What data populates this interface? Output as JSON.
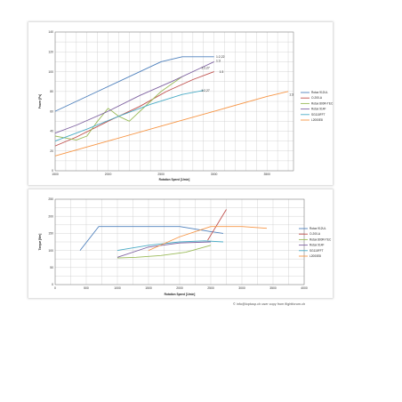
{
  "colors": {
    "rotax912": "#4f81bd",
    "o200": "#c0504d",
    "rotax800": "#9bbb59",
    "rotax914": "#8064a2",
    "sg": "#4bacc6",
    "l2000": "#f79646"
  },
  "chart_data": [
    {
      "type": "line",
      "xlabel": "Rotation Speed [1/min]",
      "ylabel": "Power [Ps]",
      "xlim": [
        1500,
        3750
      ],
      "ylim": [
        0,
        140
      ],
      "xticks": [
        1500,
        2000,
        2500,
        3000,
        3500
      ],
      "yticks": [
        0,
        20,
        40,
        60,
        80,
        100,
        120,
        140
      ],
      "grid": true,
      "legend_position": "right",
      "series": [
        {
          "name": "Rotax 912UL",
          "color": "rotax912",
          "x": [
            1500,
            1900,
            2300,
            2500,
            2700,
            3000
          ],
          "y": [
            60,
            80,
            100,
            110,
            115,
            115
          ]
        },
        {
          "name": "O-200-A",
          "color": "o200",
          "x": [
            1500,
            1700,
            2000,
            2300,
            2550,
            2800,
            3000
          ],
          "y": [
            25,
            34,
            50,
            65,
            80,
            92,
            100
          ]
        },
        {
          "name": "Rotax 800R-TEC",
          "color": "rotax800",
          "x": [
            1500,
            1600,
            1700,
            1800,
            1900,
            2000,
            2100,
            2200,
            2300,
            2500,
            2700
          ],
          "y": [
            35,
            33,
            31,
            35,
            50,
            63,
            55,
            50,
            60,
            80,
            95
          ]
        },
        {
          "name": "Rotax 914F",
          "color": "rotax914",
          "x": [
            1500,
            1700,
            2000,
            2300,
            2600,
            2900,
            3000
          ],
          "y": [
            38,
            46,
            60,
            76,
            90,
            105,
            110
          ]
        },
        {
          "name": "SG110FFT",
          "color": "sg",
          "x": [
            1500,
            1800,
            2100,
            2400,
            2700,
            2900
          ],
          "y": [
            30,
            42,
            55,
            67,
            77,
            81
          ]
        },
        {
          "name": "L2000E8",
          "color": "l2000",
          "x": [
            1500,
            2000,
            2500,
            3000,
            3500,
            3700
          ],
          "y": [
            15,
            30,
            45,
            60,
            75,
            80
          ]
        }
      ],
      "annotations": [
        {
          "text": "1:2,22",
          "x": 3020,
          "y": 115
        },
        {
          "text": "1:3",
          "x": 3020,
          "y": 111
        },
        {
          "text": "1:2,27",
          "x": 2880,
          "y": 104
        },
        {
          "text": "1:3",
          "x": 3050,
          "y": 100
        },
        {
          "text": "1:2,27",
          "x": 2880,
          "y": 81
        },
        {
          "text": "1:3",
          "x": 3710,
          "y": 77
        }
      ]
    },
    {
      "type": "line",
      "xlabel": "Rotation Speed [1/min]",
      "ylabel": "Torque [Nm]",
      "xlim": [
        0,
        4000
      ],
      "ylim": [
        0,
        250
      ],
      "xticks": [
        0,
        500,
        1000,
        1500,
        2000,
        2500,
        3000,
        3500,
        4000
      ],
      "yticks": [
        0,
        50,
        100,
        150,
        200,
        250
      ],
      "grid": true,
      "legend_position": "right",
      "series": [
        {
          "name": "Rotax 912UL",
          "color": "rotax912",
          "x": [
            400,
            700,
            2000,
            2500,
            2700
          ],
          "y": [
            100,
            170,
            170,
            155,
            150
          ]
        },
        {
          "name": "O-200-A",
          "color": "o200",
          "x": [
            2450,
            2550,
            2650,
            2750
          ],
          "y": [
            130,
            160,
            190,
            220
          ]
        },
        {
          "name": "Rotax 800R-TEC",
          "color": "rotax800",
          "x": [
            1000,
            1300,
            1700,
            2100,
            2500
          ],
          "y": [
            78,
            80,
            85,
            95,
            115
          ]
        },
        {
          "name": "Rotax 914F",
          "color": "rotax914",
          "x": [
            1000,
            1500,
            2000,
            2500
          ],
          "y": [
            80,
            110,
            122,
            125
          ]
        },
        {
          "name": "SG110FFT",
          "color": "sg",
          "x": [
            1000,
            1500,
            2000,
            2400,
            2700
          ],
          "y": [
            100,
            115,
            125,
            128,
            125
          ]
        },
        {
          "name": "L2000E8",
          "color": "l2000",
          "x": [
            1500,
            2000,
            2500,
            3000,
            3400
          ],
          "y": [
            100,
            140,
            170,
            170,
            165
          ]
        }
      ]
    }
  ],
  "footer": "© info@loptusp.ch    user copy from flightforum.ch"
}
